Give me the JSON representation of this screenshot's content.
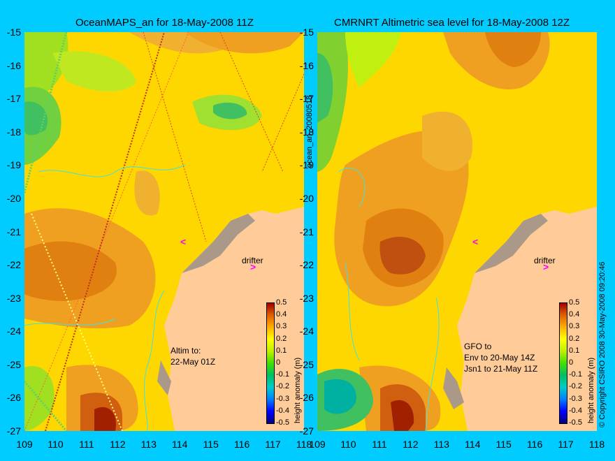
{
  "left_panel": {
    "title": "OceanMAPS_an for 18-May-2008 11Z",
    "annotation_lines": [
      "Altim to:",
      "22-May 01Z"
    ],
    "drifter_label": "drifter",
    "side_label": "ocean_an_20080518"
  },
  "right_panel": {
    "title": "CMRNRT Altimetric sea level  for 18-May-2008 12Z",
    "annotation_lines": [
      "GFO to",
      "Env to 20-May 14Z",
      "Jsn1 to 21-May 11Z"
    ],
    "drifter_label": "drifter",
    "side_label": "© Copyright CSIRO 2008   30-May-2008 09:20:46"
  },
  "axes": {
    "lat_ticks": [
      "-15",
      "-16",
      "-17",
      "-18",
      "-19",
      "-20",
      "-21",
      "-22",
      "-23",
      "-24",
      "-25",
      "-26",
      "-27"
    ],
    "lon_ticks": [
      "109",
      "110",
      "111",
      "112",
      "113",
      "114",
      "115",
      "116",
      "117",
      "118"
    ]
  },
  "colorbar": {
    "title": "height anomaly (m)",
    "ticks": [
      "0.5",
      "0.4",
      "0.3",
      "0.2",
      "0.1",
      "0",
      "-0.1",
      "-0.2",
      "-0.3",
      "-0.4",
      "-0.5"
    ]
  },
  "colors": {
    "background": "#00ccff",
    "land": "#ffcc99",
    "coast": "#aa9988",
    "drifter": "#ff00ff"
  }
}
